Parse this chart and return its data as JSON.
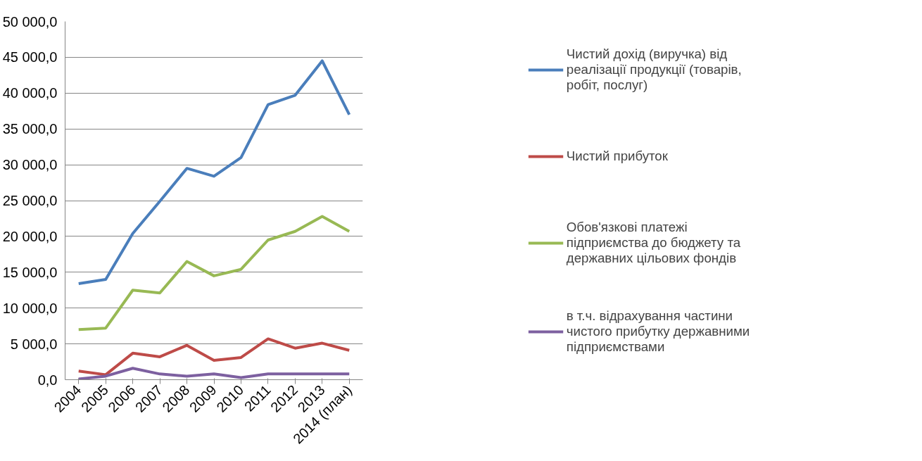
{
  "chart_data": {
    "type": "line",
    "categories": [
      "2004",
      "2005",
      "2006",
      "2007",
      "2008",
      "2009",
      "2010",
      "2011",
      "2012",
      "2013",
      "2014 (план)"
    ],
    "series": [
      {
        "name": "Чистий дохід (виручка) від реалізації продукції (товарів, робіт, послуг)",
        "color": "#4a7ebb",
        "values": [
          13400,
          14000,
          20400,
          24900,
          29500,
          28400,
          31000,
          38400,
          39700,
          44500,
          37000
        ]
      },
      {
        "name": "Чистий прибуток",
        "color": "#be4b48",
        "values": [
          1200,
          700,
          3700,
          3200,
          4800,
          2700,
          3100,
          5700,
          4400,
          5100,
          4100
        ]
      },
      {
        "name": "Обов'язкові платежі підприємства до бюджету та державних цільових фондів",
        "color": "#98b954",
        "values": [
          7000,
          7200,
          12500,
          12100,
          16500,
          14500,
          15400,
          19500,
          20700,
          22800,
          20700
        ]
      },
      {
        "name": "в т.ч. відрахування частини чистого прибутку державними підприємствами",
        "color": "#7d60a0",
        "values": [
          100,
          500,
          1600,
          800,
          500,
          800,
          300,
          800,
          800,
          800,
          800
        ]
      }
    ],
    "ylim": [
      0,
      50000
    ],
    "yticks": [
      {
        "value": 0,
        "label": "0,0"
      },
      {
        "value": 5000,
        "label": "5 000,0"
      },
      {
        "value": 10000,
        "label": "10 000,0"
      },
      {
        "value": 15000,
        "label": "15 000,0"
      },
      {
        "value": 20000,
        "label": "20 000,0"
      },
      {
        "value": 25000,
        "label": "25 000,0"
      },
      {
        "value": 30000,
        "label": "30 000,0"
      },
      {
        "value": 35000,
        "label": "35 000,0"
      },
      {
        "value": 40000,
        "label": "40 000,0"
      },
      {
        "value": 45000,
        "label": "45 000,0"
      },
      {
        "value": 50000,
        "label": "50 000,0"
      }
    ],
    "grid": "y",
    "legend": "right",
    "marker": "none",
    "line_style": "solid"
  }
}
